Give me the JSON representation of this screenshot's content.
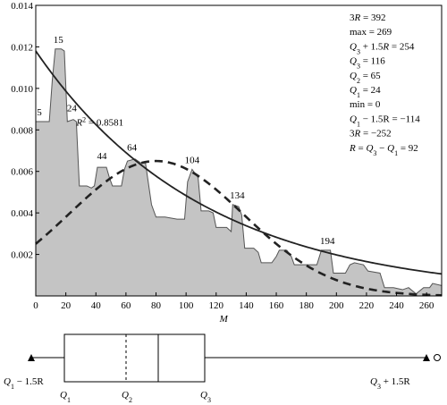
{
  "chart_data": [
    {
      "type": "area",
      "title": "",
      "xlabel": "M",
      "ylabel": "",
      "xlim": [
        0,
        270
      ],
      "ylim": [
        0,
        0.014
      ],
      "grid": false,
      "x_ticks": [
        "0",
        "20",
        "40",
        "60",
        "80",
        "100",
        "120",
        "140",
        "160",
        "180",
        "200",
        "220",
        "240",
        "260"
      ],
      "x_tick_values": [
        0,
        20,
        40,
        60,
        80,
        100,
        120,
        140,
        160,
        180,
        200,
        220,
        240,
        260
      ],
      "y_ticks": [
        "0.002",
        "0.004",
        "0.006",
        "0.008",
        "0.010",
        "0.012",
        "0.014"
      ],
      "y_tick_values": [
        0.002,
        0.004,
        0.006,
        0.008,
        0.01,
        0.012,
        0.014
      ],
      "series": [
        {
          "kind": "empirical-density-area",
          "points": [
            [
              0,
              0.0084
            ],
            [
              5,
              0.0084
            ],
            [
              9,
              0.0084
            ],
            [
              11,
              0.0104
            ],
            [
              13,
              0.0119
            ],
            [
              17,
              0.0119
            ],
            [
              19,
              0.0118
            ],
            [
              21,
              0.0084
            ],
            [
              25,
              0.0085
            ],
            [
              27,
              0.0084
            ],
            [
              29,
              0.0053
            ],
            [
              34,
              0.0053
            ],
            [
              37,
              0.0052
            ],
            [
              39,
              0.0053
            ],
            [
              41,
              0.0062
            ],
            [
              47,
              0.0062
            ],
            [
              49,
              0.0057
            ],
            [
              51,
              0.0053
            ],
            [
              54,
              0.0053
            ],
            [
              57,
              0.0053
            ],
            [
              59,
              0.0061
            ],
            [
              61,
              0.0065
            ],
            [
              66,
              0.0066
            ],
            [
              70,
              0.0064
            ],
            [
              73,
              0.0064
            ],
            [
              77,
              0.0044
            ],
            [
              80,
              0.0038
            ],
            [
              86,
              0.0038
            ],
            [
              94,
              0.0037
            ],
            [
              99,
              0.0037
            ],
            [
              101,
              0.0055
            ],
            [
              104,
              0.0061
            ],
            [
              108,
              0.0057
            ],
            [
              110,
              0.0041
            ],
            [
              115,
              0.0041
            ],
            [
              118,
              0.004
            ],
            [
              120,
              0.0033
            ],
            [
              127,
              0.0033
            ],
            [
              130,
              0.0031
            ],
            [
              131,
              0.0044
            ],
            [
              135,
              0.0043
            ],
            [
              137,
              0.0039
            ],
            [
              139,
              0.0023
            ],
            [
              145,
              0.0023
            ],
            [
              148,
              0.0021
            ],
            [
              150,
              0.0016
            ],
            [
              157,
              0.0016
            ],
            [
              160,
              0.0019
            ],
            [
              162,
              0.0022
            ],
            [
              167,
              0.0022
            ],
            [
              170,
              0.0019
            ],
            [
              172,
              0.0015
            ],
            [
              180,
              0.0015
            ],
            [
              187,
              0.0015
            ],
            [
              190,
              0.0022
            ],
            [
              196,
              0.0022
            ],
            [
              198,
              0.0011
            ],
            [
              206,
              0.0011
            ],
            [
              209,
              0.0015
            ],
            [
              212,
              0.0016
            ],
            [
              218,
              0.0015
            ],
            [
              221,
              0.0012
            ],
            [
              229,
              0.0011
            ],
            [
              232,
              0.0004
            ],
            [
              238,
              0.0004
            ],
            [
              244,
              0.0003
            ],
            [
              248,
              0.0004
            ],
            [
              253,
              0.0001
            ],
            [
              258,
              0.0004
            ],
            [
              262,
              0.0004
            ],
            [
              264,
              0.0006
            ],
            [
              270,
              0.0005
            ]
          ]
        },
        {
          "kind": "exponential-fit",
          "style": "solid",
          "function": "0.0118*exp(-x/112)",
          "x_range": [
            0,
            270
          ]
        },
        {
          "kind": "normal-fit",
          "style": "dashed",
          "function": "0.0065*exp(-((x-80)^2)/(2*58^2))",
          "x_range": [
            0,
            270
          ]
        }
      ],
      "bar_labels": [
        {
          "text": "5",
          "x": 0,
          "y": 0.0087
        },
        {
          "text": "15",
          "x": 15,
          "y": 0.0122
        },
        {
          "text": "24",
          "x": 24,
          "y": 0.0089
        },
        {
          "text": "44",
          "x": 44,
          "y": 0.0066
        },
        {
          "text": "64",
          "x": 64,
          "y": 0.007
        },
        {
          "text": "104",
          "x": 104,
          "y": 0.0064
        },
        {
          "text": "134",
          "x": 134,
          "y": 0.0047
        },
        {
          "text": "194",
          "x": 194,
          "y": 0.0025
        }
      ],
      "fit_label": {
        "lhs": "R",
        "sup": "2",
        "rhs": " = 0.8581",
        "x": 27,
        "y": 0.0082
      },
      "stats_text": [
        {
          "pre": "3",
          "var": "R",
          "post": " = 392"
        },
        {
          "pre": "max = 269",
          "var": "",
          "post": ""
        },
        {
          "pre": "",
          "var": "Q",
          "sub": "3",
          "post": " + 1.5",
          "var2": "R",
          "post2": " = 254"
        },
        {
          "pre": "",
          "var": "Q",
          "sub": "3",
          "post": " = 116"
        },
        {
          "pre": "",
          "var": "Q",
          "sub": "2",
          "post": " = 65"
        },
        {
          "pre": "",
          "var": "Q",
          "sub": "1",
          "post": " = 24"
        },
        {
          "pre": "min = 0",
          "var": "",
          "post": ""
        },
        {
          "pre": "",
          "var": "Q",
          "sub": "1",
          "post": " − 1.5R = −114"
        },
        {
          "pre": "3",
          "var": "R",
          "post": " = −252"
        },
        {
          "pre": "",
          "var": "R",
          "post": " = ",
          "var2": "Q",
          "sub2": "3",
          "post2": " − ",
          "var3": "Q",
          "sub3": "1",
          "post3": " = 92"
        }
      ]
    },
    {
      "type": "boxplot",
      "box": {
        "q1": 24,
        "q2": 65,
        "q3": 116
      },
      "whisker_left": {
        "label_var": "Q",
        "label_sub": "1",
        "label_post": " − 1.5R"
      },
      "whisker_right": {
        "label_var": "Q",
        "label_sub": "3",
        "label_post": " + 1.5R"
      },
      "quartile_labels": [
        {
          "var": "Q",
          "sub": "1"
        },
        {
          "var": "Q",
          "sub": "2"
        },
        {
          "var": "Q",
          "sub": "3"
        }
      ]
    }
  ]
}
